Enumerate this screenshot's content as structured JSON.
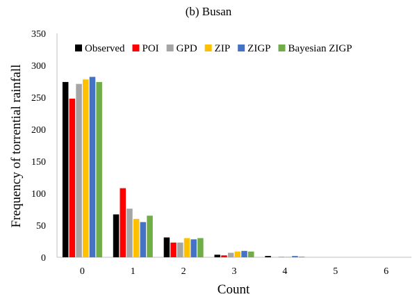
{
  "chart_data": {
    "type": "bar",
    "title": "(b) Busan",
    "xlabel": "Count",
    "ylabel": "Frequency of torrential rainfall",
    "categories": [
      "0",
      "1",
      "2",
      "3",
      "4",
      "5",
      "6"
    ],
    "ylim": [
      0,
      350
    ],
    "yticks": [
      "0",
      "50",
      "100",
      "150",
      "200",
      "250",
      "300",
      "350"
    ],
    "grid": false,
    "legend_position": "top",
    "series": [
      {
        "name": "Observed",
        "color": "#000000",
        "values": [
          274,
          67,
          31,
          4,
          2,
          0,
          0
        ]
      },
      {
        "name": "POI",
        "color": "#ff0000",
        "values": [
          248,
          108,
          23,
          3,
          0,
          0,
          0
        ]
      },
      {
        "name": "GPD",
        "color": "#a5a5a5",
        "values": [
          271,
          76,
          23,
          7,
          1,
          0,
          0
        ]
      },
      {
        "name": "ZIP",
        "color": "#ffc000",
        "values": [
          278,
          60,
          30,
          9,
          1,
          0,
          0
        ]
      },
      {
        "name": "ZIGP",
        "color": "#4472c4",
        "values": [
          282,
          55,
          28,
          10,
          2,
          0,
          0
        ]
      },
      {
        "name": "Bayesian ZIGP",
        "color": "#70ad47",
        "values": [
          274,
          65,
          30,
          9,
          1,
          0,
          0
        ]
      }
    ]
  }
}
